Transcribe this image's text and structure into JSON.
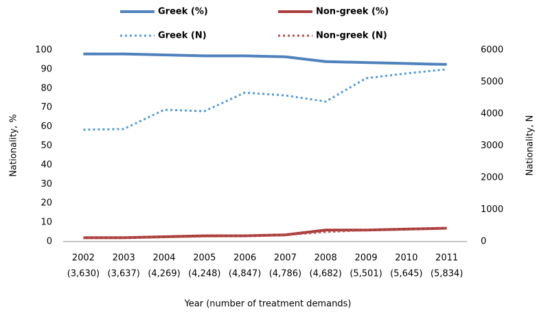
{
  "chart_data": {
    "type": "line",
    "xlabel": "Year (number of treatment demands)",
    "ylabel": "Nationality, %",
    "y2label": "Nationality, N",
    "categories": [
      "2002",
      "2003",
      "2004",
      "2005",
      "2006",
      "2007",
      "2008",
      "2009",
      "2010",
      "2011"
    ],
    "category_sublabels": [
      "(3,630)",
      "(3,637)",
      "(4,269)",
      "(4,248)",
      "(4,847)",
      "(4,786)",
      "(4,682)",
      "(5,501)",
      "(5,645)",
      "(5,834)"
    ],
    "series": [
      {
        "name": "Greek (%)",
        "color": "#4f81bd",
        "line_style": "solid",
        "values": [
          98,
          98,
          97.5,
          97,
          97,
          96.5,
          94,
          93.5,
          93,
          92.5
        ]
      },
      {
        "name": "Non-greek (%)",
        "color": "#a93c3a",
        "line_style": "solid",
        "values": [
          2,
          2,
          2.5,
          3,
          3,
          3.5,
          6,
          6,
          6.5,
          7
        ]
      },
      {
        "name": "Greek (N)",
        "color": "#4f9ad8",
        "line_style": "dotted",
        "axis": "y2",
        "values": [
          3505,
          3527,
          4129,
          4086,
          4667,
          4581,
          4387,
          5118,
          5269,
          5398
        ]
      },
      {
        "name": "Non-greek (N)",
        "color": "#b4504d",
        "line_style": "dotted",
        "axis": "y2",
        "values": [
          110,
          120,
          140,
          160,
          180,
          205,
          300,
          360,
          380,
          430
        ]
      }
    ],
    "ylim": [
      0,
      100
    ],
    "yticks": [
      0,
      10,
      20,
      30,
      40,
      50,
      60,
      70,
      80,
      90,
      100
    ],
    "y2lim": [
      0,
      6000
    ],
    "y2ticks": [
      0,
      1000,
      2000,
      3000,
      4000,
      5000,
      6000
    ],
    "grid": false
  }
}
